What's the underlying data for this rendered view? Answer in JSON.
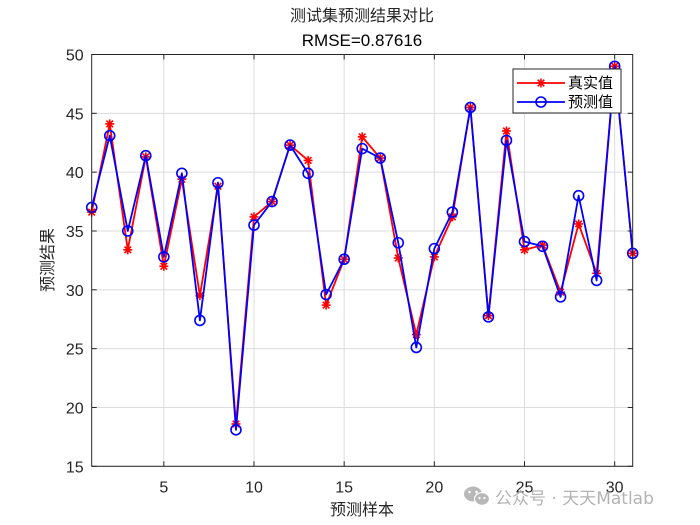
{
  "chart_data": {
    "type": "line",
    "title": "测试集预测结果对比",
    "subtitle": "RMSE=0.87616",
    "xlabel": "预测样本",
    "ylabel": "预测结果",
    "xlim": [
      1,
      31
    ],
    "ylim": [
      15,
      50
    ],
    "xticks": [
      5,
      10,
      15,
      20,
      25,
      30
    ],
    "yticks": [
      15,
      20,
      25,
      30,
      35,
      40,
      45,
      50
    ],
    "grid": true,
    "legend_position": "northeast",
    "x": [
      1,
      2,
      3,
      4,
      5,
      6,
      7,
      8,
      9,
      10,
      11,
      12,
      13,
      14,
      15,
      16,
      17,
      18,
      19,
      20,
      21,
      22,
      23,
      24,
      25,
      26,
      27,
      28,
      29,
      30,
      31
    ],
    "series": [
      {
        "name": "真实值",
        "color": "#FF0000",
        "marker": "*",
        "values": [
          36.6,
          44.1,
          33.4,
          41.3,
          32.0,
          39.4,
          29.5,
          38.8,
          18.6,
          36.2,
          37.5,
          42.3,
          41.0,
          28.7,
          32.6,
          43.0,
          41.2,
          32.7,
          26.2,
          32.8,
          36.2,
          45.5,
          27.8,
          43.5,
          33.4,
          33.8,
          29.8,
          35.6,
          31.4,
          49.0,
          33.1
        ]
      },
      {
        "name": "预测值",
        "color": "#0000FF",
        "marker": "o",
        "values": [
          37.0,
          43.1,
          35.0,
          41.4,
          32.8,
          39.9,
          27.4,
          39.1,
          18.1,
          35.5,
          37.5,
          42.3,
          39.9,
          29.6,
          32.6,
          42.0,
          41.2,
          34.0,
          25.1,
          33.5,
          36.6,
          45.5,
          27.7,
          42.7,
          34.1,
          33.7,
          29.4,
          38.0,
          30.8,
          49.0,
          33.1
        ]
      }
    ]
  },
  "colors": {
    "axis": "#262626",
    "grid": "#dcdcdc",
    "watermark": "#b3b3b3"
  },
  "watermark": {
    "icon": "wechat-icon",
    "text": "公众号 · 天天Matlab"
  }
}
